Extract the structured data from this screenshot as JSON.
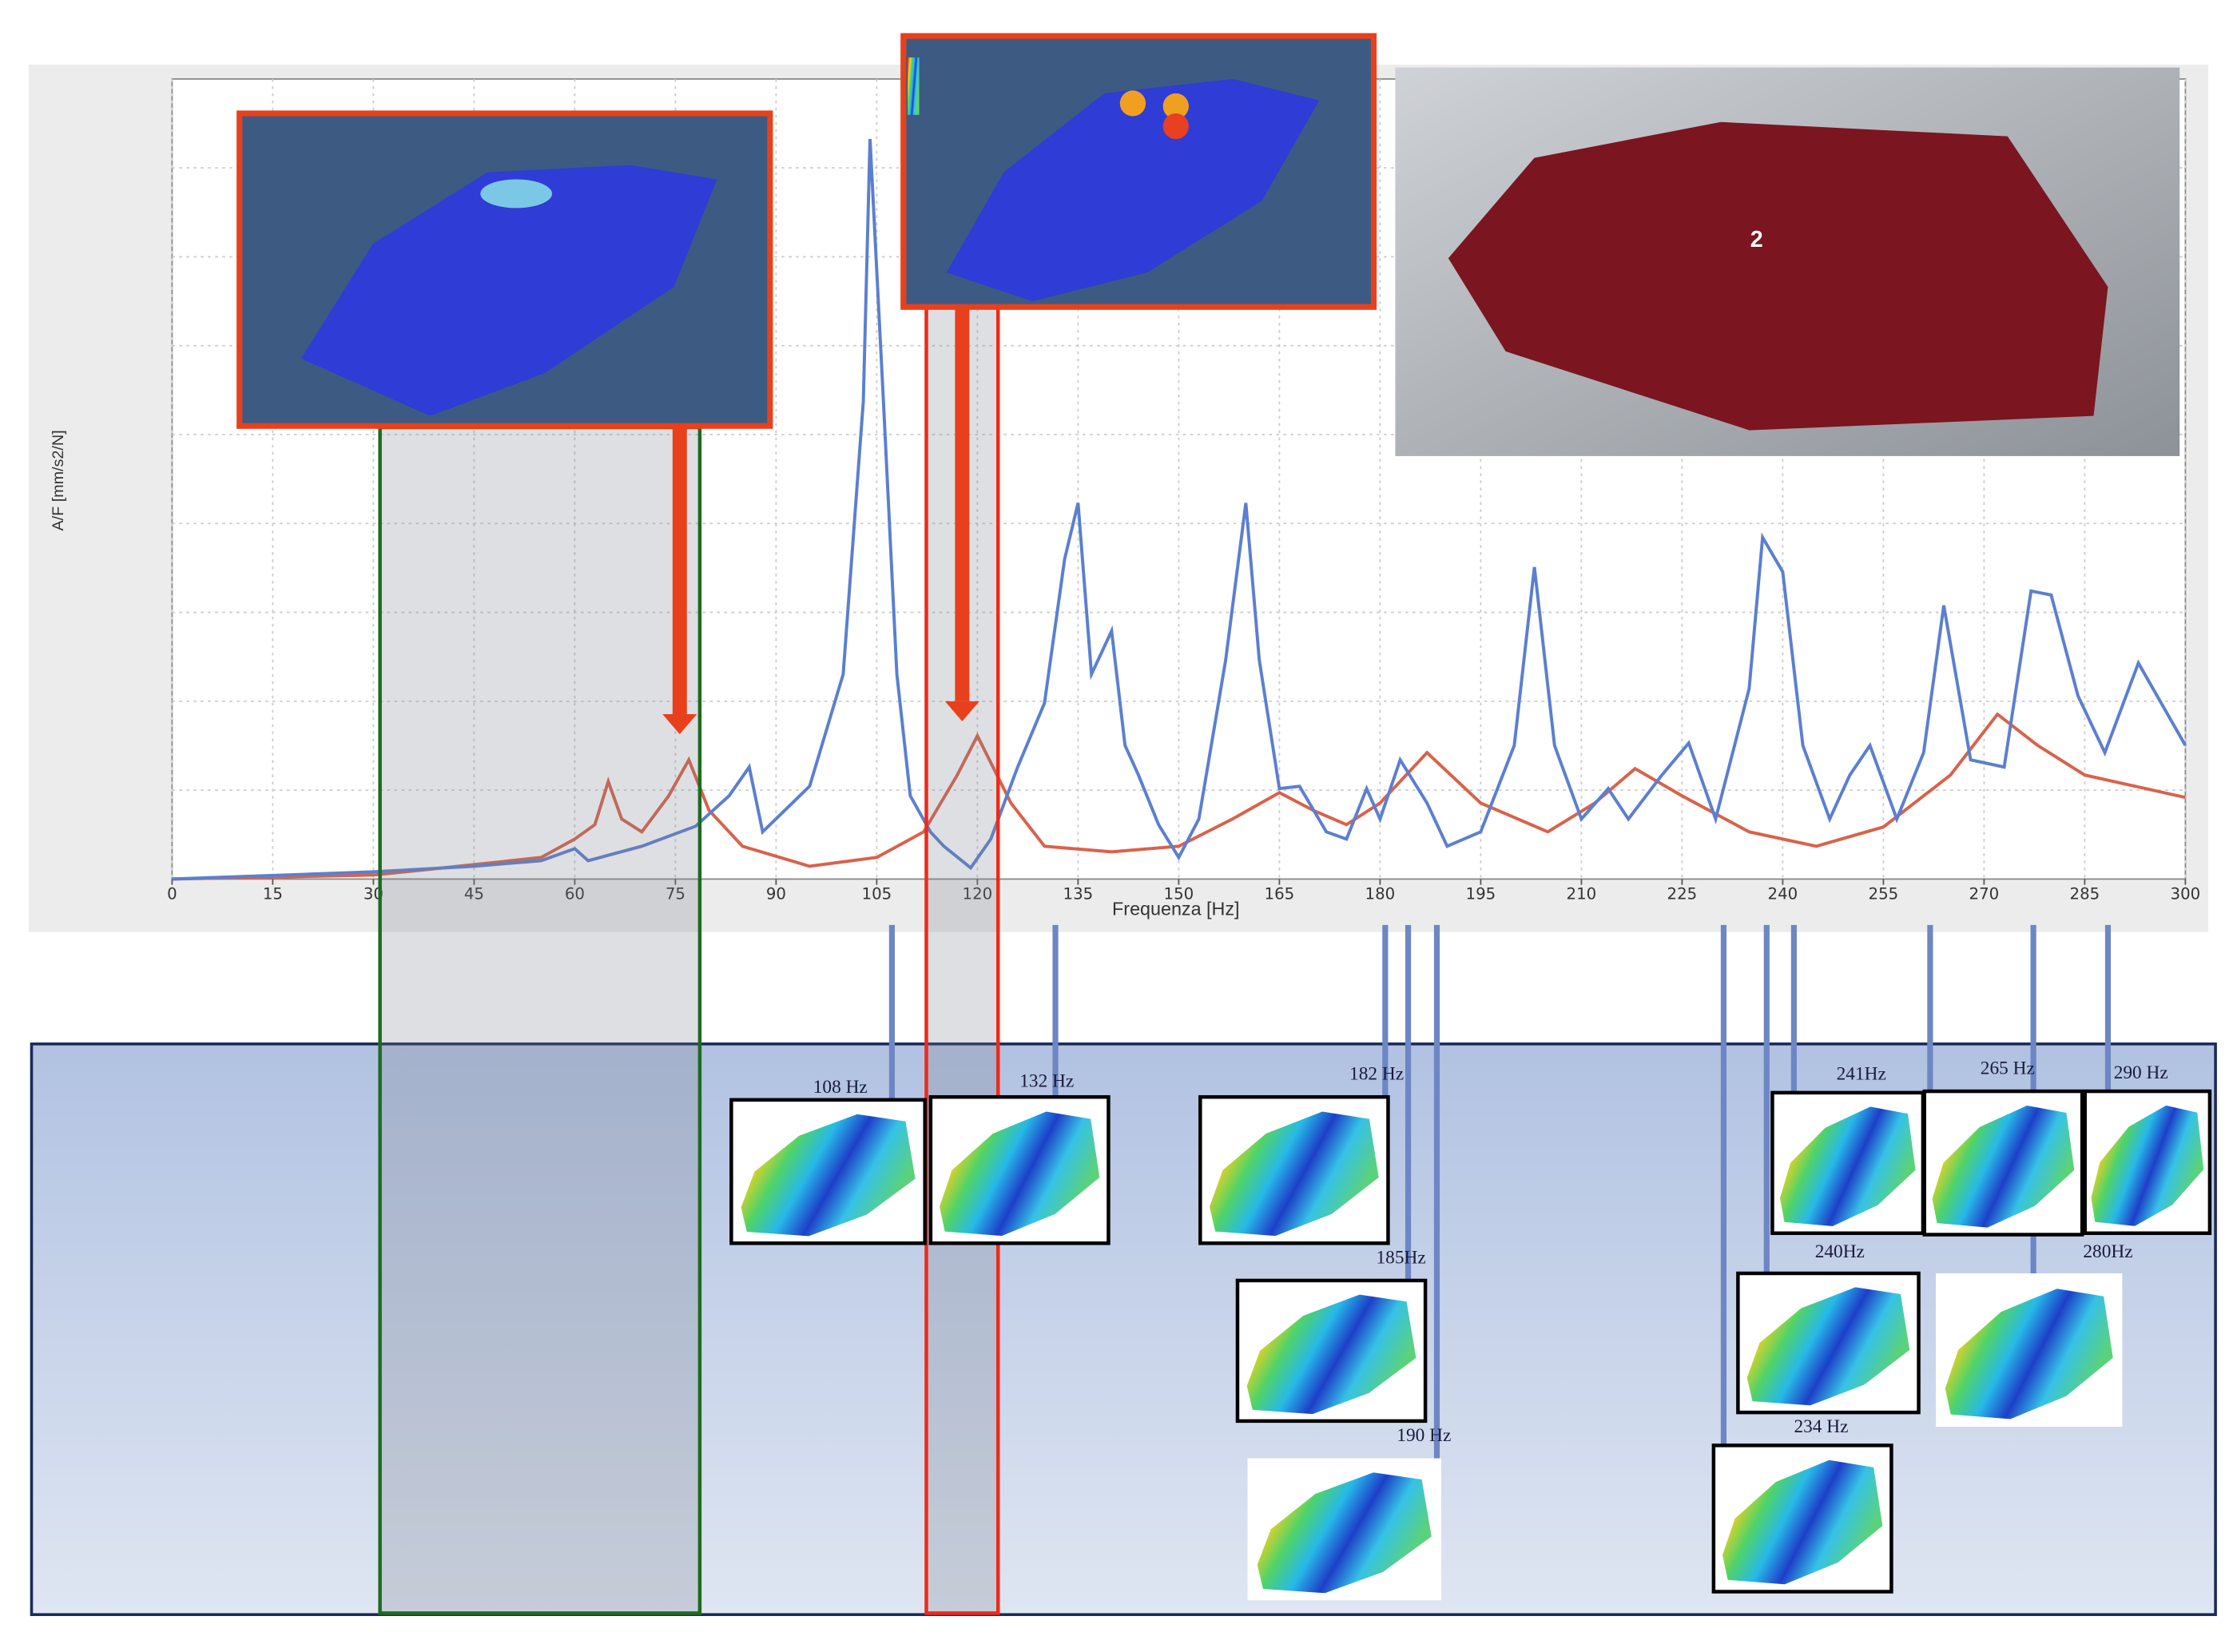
{
  "chart_data": {
    "type": "line",
    "x_label": "Frequenza [Hz]",
    "y_label": "A/F [mm/s2/N]",
    "xlim": [
      0,
      300
    ],
    "xticks": [
      0,
      15,
      30,
      45,
      60,
      75,
      90,
      105,
      120,
      135,
      150,
      165,
      180,
      195,
      210,
      225,
      240,
      255,
      270,
      285,
      300
    ],
    "ylim": [
      0,
      100
    ],
    "grid": true,
    "series": [
      {
        "color": "#5b7fd0",
        "x": [
          0,
          30,
          45,
          55,
          60,
          62,
          70,
          78,
          83,
          86,
          88,
          95,
          100,
          103,
          104,
          106,
          108,
          110,
          113,
          115,
          119,
          122,
          126,
          130,
          133,
          135,
          137,
          140,
          142,
          144,
          147,
          150,
          153,
          157,
          160,
          162,
          165,
          168,
          172,
          175,
          178,
          180,
          183,
          187,
          190,
          195,
          200,
          203,
          206,
          210,
          214,
          217,
          222,
          226,
          230,
          235,
          237,
          240,
          243,
          247,
          250,
          253,
          257,
          261,
          264,
          268,
          273,
          277,
          280,
          284,
          288,
          293,
          300
        ],
        "values": [
          0,
          0.9,
          1.6,
          2.3,
          3.8,
          2.3,
          4.1,
          6.6,
          10.4,
          14,
          5.9,
          11.6,
          25.6,
          59.7,
          92.5,
          59.7,
          25.6,
          10.4,
          5.9,
          4.1,
          1.4,
          5,
          14,
          22,
          40,
          47,
          25.6,
          31,
          16.7,
          13,
          6.8,
          2.7,
          7.5,
          27.4,
          47,
          27.4,
          11.3,
          11.6,
          5.9,
          5,
          11.3,
          7.5,
          14.9,
          9.5,
          4.1,
          5.9,
          16.7,
          39,
          16.7,
          7.5,
          11.3,
          7.5,
          13,
          17,
          7.5,
          23.8,
          42.7,
          38.4,
          16.7,
          7.5,
          13,
          16.7,
          7.5,
          15.8,
          34.2,
          14.9,
          14,
          36,
          35.5,
          22.9,
          15.8,
          27,
          16.7
        ]
      },
      {
        "color": "#d9624a",
        "x": [
          0,
          30,
          45,
          55,
          60,
          63,
          65,
          67,
          70,
          74,
          77,
          80,
          85,
          95,
          105,
          112,
          117,
          120,
          125,
          130,
          140,
          150,
          158,
          165,
          170,
          175,
          180,
          187,
          195,
          205,
          212,
          218,
          225,
          235,
          245,
          255,
          265,
          272,
          278,
          285,
          300
        ],
        "values": [
          0,
          0.5,
          1.8,
          2.7,
          5,
          6.8,
          12.2,
          7.5,
          5.9,
          10.4,
          14.9,
          8.6,
          4.1,
          1.6,
          2.7,
          5.9,
          13,
          17.9,
          9.5,
          4.1,
          3.4,
          4.1,
          7.5,
          10.8,
          8.6,
          6.8,
          9.5,
          15.8,
          9.5,
          5.9,
          9.5,
          13.8,
          10.4,
          5.9,
          4.1,
          6.5,
          13,
          20.6,
          16.7,
          13,
          10.2
        ]
      }
    ],
    "annotations": [
      "108  Hz",
      "132 Hz",
      "182 Hz",
      "185Hz",
      "190 Hz",
      "241Hz",
      "265 Hz",
      "290 Hz",
      "240Hz",
      "280Hz",
      "234 Hz"
    ],
    "inset_label": "2"
  }
}
